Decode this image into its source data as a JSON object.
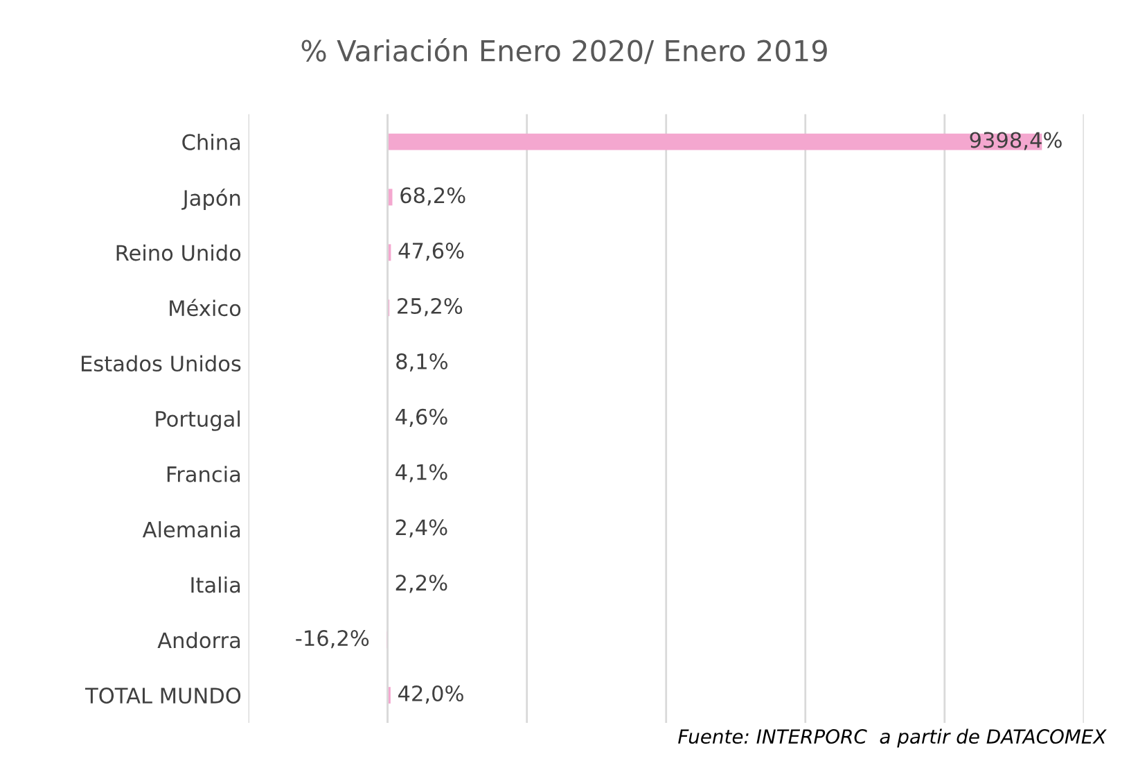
{
  "chart_data": {
    "type": "bar",
    "orientation": "horizontal",
    "title": "% Variación Enero 2020/ Enero 2019",
    "categories": [
      "China",
      "Japón",
      "Reino Unido",
      "México",
      "Estados Unidos",
      "Portugal",
      "Francia",
      "Alemania",
      "Italia",
      "Andorra",
      "TOTAL MUNDO"
    ],
    "values": [
      9398.4,
      68.2,
      47.6,
      25.2,
      8.1,
      4.6,
      4.1,
      2.4,
      2.2,
      -16.2,
      42.0
    ],
    "value_labels": [
      "9398,4%",
      "68,2%",
      "47,6%",
      "25,2%",
      "8,1%",
      "4,6%",
      "4,1%",
      "2,4%",
      "2,2%",
      "-16,2%",
      "42,0%"
    ],
    "color": "#f4a7cf",
    "xlim": [
      -2000,
      10000
    ],
    "xticks": [
      {
        "value": -2000,
        "label": null
      },
      {
        "value": 0,
        "label": null
      },
      {
        "value": 2000,
        "label": null
      },
      {
        "value": 4000,
        "label": null
      },
      {
        "value": 6000,
        "label": null
      },
      {
        "value": 8000,
        "label": null
      },
      {
        "value": 10000,
        "label": null
      }
    ],
    "grid": "x",
    "tick_labels": "y",
    "annotations": [
      "Fuente: INTERPORC  a partir de DATACOMEX"
    ]
  }
}
